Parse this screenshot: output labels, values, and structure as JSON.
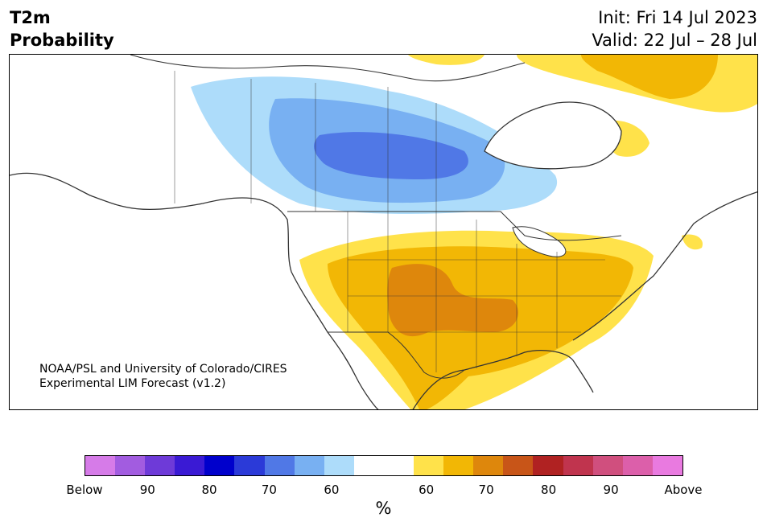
{
  "header": {
    "title_line1": "T2m",
    "title_line2": "Probability",
    "init": "Init: Fri 14 Jul 2023",
    "valid": "Valid: 22 Jul – 28 Jul"
  },
  "map": {
    "credit_line1": "NOAA/PSL and University of Colorado/CIRES",
    "credit_line2": "Experimental LIM Forecast (v1.2)"
  },
  "colorbar": {
    "colors": [
      "#d67be8",
      "#a25ce0",
      "#6e3ad8",
      "#3a1ad4",
      "#0000cc",
      "#2b3ad8",
      "#5078e6",
      "#78b0f2",
      "#addcfa",
      "#ffffff",
      "#ffffff",
      "#ffe24a",
      "#f2b705",
      "#de870c",
      "#c85518",
      "#b02222",
      "#c0344e",
      "#d04f7e",
      "#dc5faa",
      "#e97ae0"
    ],
    "tick_labels": [
      "Below",
      "90",
      "80",
      "70",
      "60",
      "60",
      "70",
      "80",
      "90",
      "Above"
    ],
    "unit": "%"
  }
}
